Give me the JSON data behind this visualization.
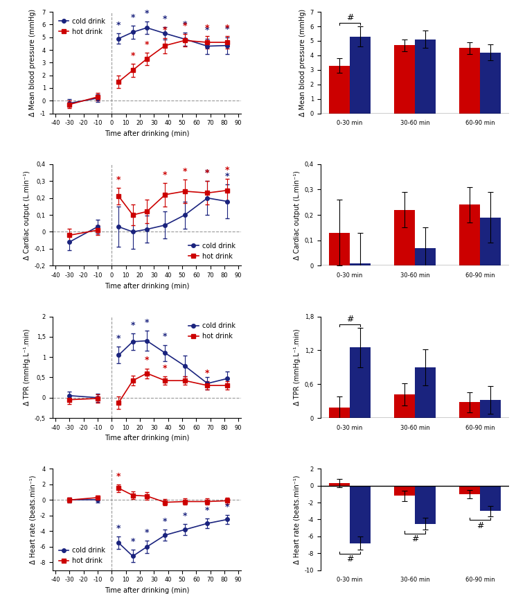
{
  "cold_color": "#1a237e",
  "hot_color": "#cc0000",
  "mbp_line": {
    "time_pre": [
      -30,
      -10
    ],
    "cold_pre": [
      -0.2,
      0.2
    ],
    "hot_pre": [
      -0.3,
      0.3
    ],
    "cold_pre_err": [
      0.3,
      0.3
    ],
    "hot_pre_err": [
      0.3,
      0.3
    ],
    "time_post": [
      5,
      15,
      25,
      38,
      52,
      68,
      82
    ],
    "cold_post": [
      4.9,
      5.4,
      5.75,
      5.3,
      4.85,
      4.3,
      4.35
    ],
    "hot_post": [
      1.5,
      2.4,
      3.3,
      4.35,
      4.75,
      4.6,
      4.6
    ],
    "cold_post_err": [
      0.4,
      0.5,
      0.5,
      0.5,
      0.5,
      0.6,
      0.65
    ],
    "hot_post_err": [
      0.5,
      0.5,
      0.5,
      0.6,
      0.5,
      0.5,
      0.5
    ],
    "cold_sig": [
      true,
      true,
      true,
      true,
      true,
      true,
      true
    ],
    "hot_sig": [
      false,
      true,
      true,
      true,
      true,
      true,
      true
    ],
    "legend_loc": "upper left",
    "ylabel": "Δ Mean blood pressure (mmHg)",
    "xlabel": "Time after drinking (min)",
    "ylim": [
      -1,
      7
    ],
    "yticks": [
      -1,
      0,
      1,
      2,
      3,
      4,
      5,
      6,
      7
    ]
  },
  "mbp_bar": {
    "groups": [
      "0-30 min",
      "30-60 min",
      "60-90 min"
    ],
    "hot_vals": [
      3.3,
      4.7,
      4.5
    ],
    "cold_vals": [
      5.3,
      5.1,
      4.2
    ],
    "hot_err": [
      0.5,
      0.4,
      0.4
    ],
    "cold_err": [
      0.7,
      0.6,
      0.55
    ],
    "bracket": {
      "type": "hot_cold_at_group",
      "group": 0
    },
    "ylabel": "Δ Mean blood pressure (mmHg)",
    "ylim": [
      0,
      7
    ],
    "yticks": [
      0,
      1,
      2,
      3,
      4,
      5,
      6,
      7
    ]
  },
  "co_line": {
    "time_pre": [
      -30,
      -10
    ],
    "cold_pre": [
      -0.06,
      0.03
    ],
    "hot_pre": [
      -0.02,
      0.01
    ],
    "cold_pre_err": [
      0.05,
      0.04
    ],
    "hot_pre_err": [
      0.04,
      0.03
    ],
    "time_post": [
      5,
      15,
      25,
      38,
      52,
      68,
      82
    ],
    "cold_post": [
      0.03,
      0.0,
      0.015,
      0.04,
      0.1,
      0.2,
      0.18
    ],
    "hot_post": [
      0.21,
      0.1,
      0.12,
      0.22,
      0.24,
      0.23,
      0.245
    ],
    "cold_post_err": [
      0.12,
      0.1,
      0.08,
      0.08,
      0.08,
      0.1,
      0.1
    ],
    "hot_post_err": [
      0.05,
      0.06,
      0.07,
      0.07,
      0.07,
      0.07,
      0.07
    ],
    "cold_sig": [
      false,
      false,
      false,
      false,
      false,
      true,
      true
    ],
    "hot_sig": [
      true,
      false,
      false,
      true,
      true,
      true,
      true
    ],
    "legend_loc": "lower right",
    "ylabel": "Δ Cardiac output (L.min⁻¹)",
    "xlabel": "Time after drinking (min)",
    "ylim": [
      -0.2,
      0.4
    ],
    "yticks": [
      -0.2,
      -0.1,
      0.0,
      0.1,
      0.2,
      0.3,
      0.4
    ]
  },
  "co_bar": {
    "groups": [
      "0-30 min",
      "30-60 min",
      "60-90 min"
    ],
    "hot_vals": [
      0.13,
      0.22,
      0.24
    ],
    "cold_vals": [
      0.01,
      0.07,
      0.19
    ],
    "hot_err": [
      0.13,
      0.07,
      0.07
    ],
    "cold_err": [
      0.12,
      0.08,
      0.1
    ],
    "bracket": null,
    "ylabel": "Δ Cardiac output (L.min⁻¹)",
    "ylim": [
      0,
      0.4
    ],
    "yticks": [
      0.0,
      0.1,
      0.2,
      0.3,
      0.4
    ]
  },
  "tpr_line": {
    "time_pre": [
      -30,
      -10
    ],
    "cold_pre": [
      0.05,
      0.0
    ],
    "hot_pre": [
      -0.05,
      -0.02
    ],
    "cold_pre_err": [
      0.1,
      0.1
    ],
    "hot_pre_err": [
      0.1,
      0.1
    ],
    "time_post": [
      5,
      15,
      25,
      38,
      52,
      68,
      82
    ],
    "cold_post": [
      1.05,
      1.38,
      1.4,
      1.1,
      0.78,
      0.35,
      0.47
    ],
    "hot_post": [
      -0.12,
      0.42,
      0.6,
      0.42,
      0.42,
      0.3,
      0.3
    ],
    "cold_post_err": [
      0.2,
      0.2,
      0.25,
      0.2,
      0.25,
      0.15,
      0.18
    ],
    "hot_post_err": [
      0.15,
      0.12,
      0.12,
      0.1,
      0.1,
      0.1,
      0.1
    ],
    "cold_sig": [
      true,
      true,
      true,
      true,
      false,
      false,
      false
    ],
    "hot_sig": [
      false,
      false,
      true,
      true,
      false,
      true,
      false
    ],
    "legend_loc": "upper right",
    "ylabel": "Δ TPR (mmHg.L⁻¹.min)",
    "xlabel": "Time after drinking (min)",
    "ylim": [
      -0.5,
      2.0
    ],
    "yticks": [
      -0.5,
      0.0,
      0.5,
      1.0,
      1.5,
      2.0
    ]
  },
  "tpr_bar": {
    "groups": [
      "0-30 min",
      "30-60 min",
      "60-90 min"
    ],
    "hot_vals": [
      0.18,
      0.42,
      0.28
    ],
    "cold_vals": [
      1.25,
      0.9,
      0.32
    ],
    "hot_err": [
      0.2,
      0.2,
      0.18
    ],
    "cold_err": [
      0.35,
      0.32,
      0.25
    ],
    "bracket": {
      "type": "hot_cold_at_group",
      "group": 0
    },
    "ylabel": "Δ TPR (mmHg.L⁻¹.min)",
    "ylim": [
      0,
      1.8
    ],
    "yticks": [
      0.0,
      0.6,
      1.2,
      1.8
    ]
  },
  "hr_line": {
    "time_pre": [
      -30,
      -10
    ],
    "cold_pre": [
      0.0,
      0.0
    ],
    "hot_pre": [
      0.0,
      0.3
    ],
    "cold_pre_err": [
      0.3,
      0.3
    ],
    "hot_pre_err": [
      0.3,
      0.3
    ],
    "time_post": [
      5,
      15,
      25,
      38,
      52,
      68,
      82
    ],
    "cold_post": [
      -5.5,
      -7.2,
      -6.0,
      -4.5,
      -3.8,
      -3.0,
      -2.5
    ],
    "hot_post": [
      1.5,
      0.6,
      0.5,
      -0.3,
      -0.2,
      -0.2,
      -0.1
    ],
    "cold_post_err": [
      0.8,
      0.8,
      0.8,
      0.7,
      0.7,
      0.6,
      0.6
    ],
    "hot_post_err": [
      0.5,
      0.5,
      0.5,
      0.4,
      0.4,
      0.4,
      0.4
    ],
    "cold_sig": [
      true,
      true,
      true,
      true,
      true,
      true,
      true
    ],
    "hot_sig": [
      true,
      false,
      false,
      false,
      false,
      false,
      false
    ],
    "legend_loc": "lower left",
    "ylabel": "Δ Heart rate (beats.min⁻¹)",
    "xlabel": "Time after drinking (min)",
    "ylim": [
      -9,
      4
    ],
    "yticks": [
      -8,
      -6,
      -4,
      -2,
      0,
      2,
      4
    ]
  },
  "hr_bar": {
    "groups": [
      "0-30 min",
      "30-60 min",
      "60-90 min"
    ],
    "hot_vals": [
      0.3,
      -1.2,
      -1.0
    ],
    "cold_vals": [
      -6.8,
      -4.5,
      -3.0
    ],
    "hot_err": [
      0.5,
      0.6,
      0.5
    ],
    "cold_err": [
      0.8,
      0.7,
      0.6
    ],
    "bracket": {
      "type": "within_group_bottom"
    },
    "ylabel": "Δ Heart rate (beats.min⁻¹)",
    "ylim": [
      -10,
      2
    ],
    "yticks": [
      -10,
      -8,
      -6,
      -4,
      -2,
      0,
      2
    ]
  },
  "bar_width": 0.32
}
